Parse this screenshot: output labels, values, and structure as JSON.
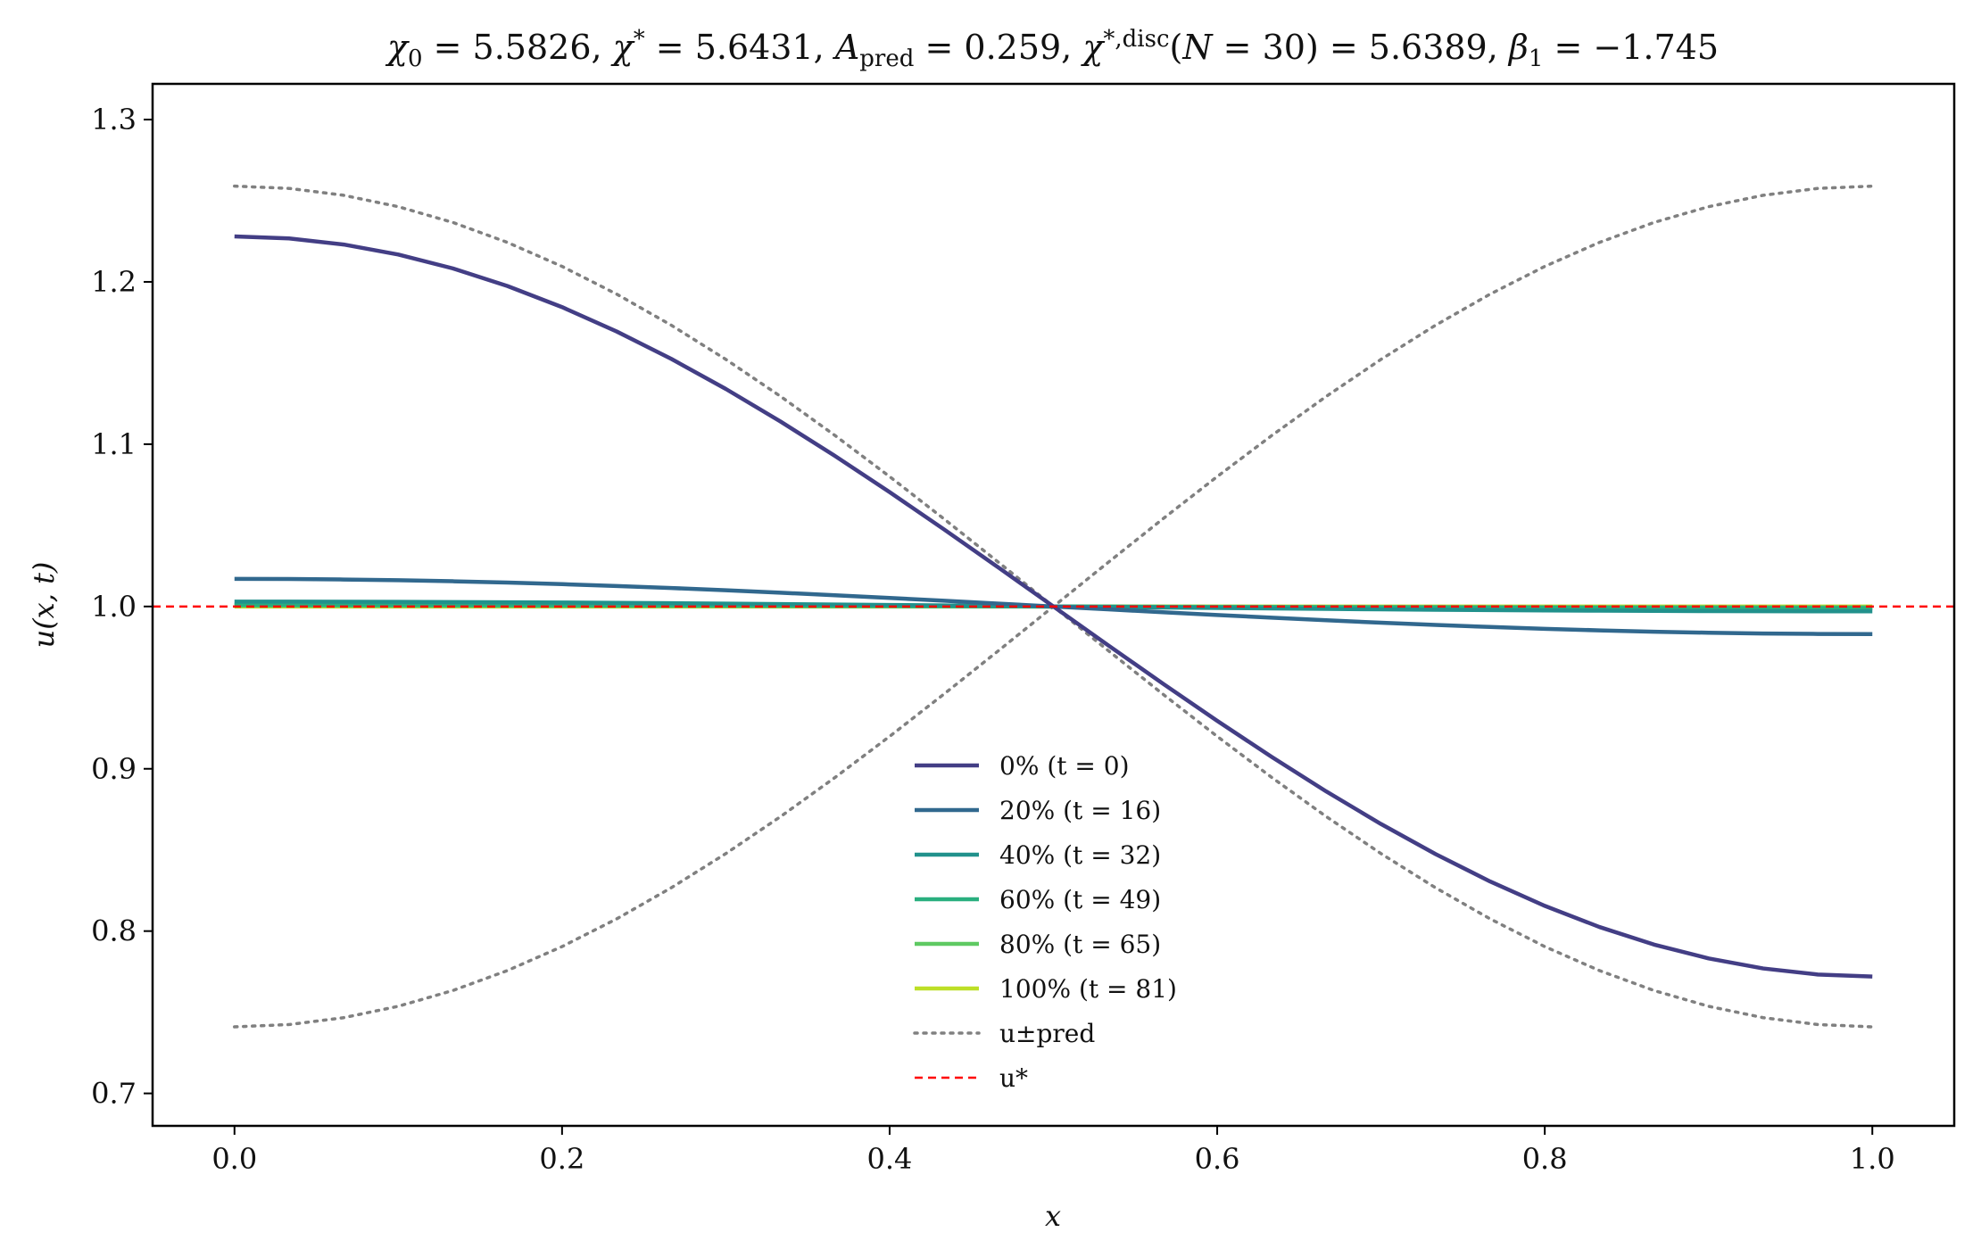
{
  "chart_data": {
    "type": "line",
    "title": "χ₀ = 5.5826,  χ* = 5.6431,  A_pred = 0.259,  χ*,disc(N = 30) = 5.6389,  β₁ = −1.745",
    "xlabel": "x",
    "ylabel": "u(x, t)",
    "xlim": [
      -0.05,
      1.05
    ],
    "ylim": [
      0.68,
      1.322
    ],
    "xticks": [
      "0.0",
      "0.2",
      "0.4",
      "0.6",
      "0.8",
      "1.0"
    ],
    "yticks": [
      "0.7",
      "0.8",
      "0.9",
      "1.0",
      "1.1",
      "1.2",
      "1.3"
    ],
    "grid": false,
    "legend_position": "lower-center",
    "series": [
      {
        "name": "0% (t = 0)",
        "color": "#433e85",
        "style": "solid",
        "amplitude": 0.228
      },
      {
        "name": "20% (t = 16)",
        "color": "#31688e",
        "style": "solid",
        "amplitude": 0.017
      },
      {
        "name": "40% (t = 32)",
        "color": "#21918c",
        "style": "solid",
        "amplitude": 0.003
      },
      {
        "name": "60% (t = 49)",
        "color": "#29af7f",
        "style": "solid",
        "amplitude": 0.001
      },
      {
        "name": "80% (t = 65)",
        "color": "#5ec962",
        "style": "solid",
        "amplitude": 0.0005
      },
      {
        "name": "100% (t = 81)",
        "color": "#bddf26",
        "style": "solid",
        "amplitude": 0.0
      },
      {
        "name": "u±pred",
        "color": "#808080",
        "style": "dotted",
        "amplitude": 0.259
      },
      {
        "name": "u*",
        "color": "#ff0000",
        "style": "dashed",
        "value": 1.0
      }
    ]
  }
}
